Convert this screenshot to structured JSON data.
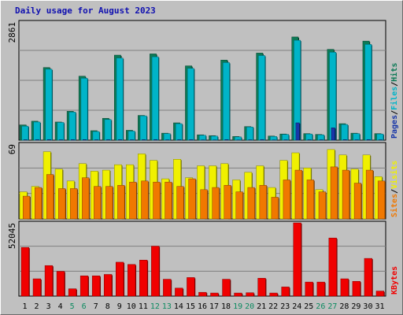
{
  "title": "Daily usage for August 2023",
  "colors": {
    "pages": "#1836a8",
    "files": "#00b4c8",
    "hits": "#0c7a56",
    "sites": "#f07800",
    "visits": "#f0f000",
    "kbytes": "#f00000",
    "weekend_day": "#0c8a60",
    "weekday": "#000000",
    "plot_bg": "#c0c0c0",
    "grid": "#808080"
  },
  "chart_data": [
    {
      "type": "bar",
      "panel": "hits-files-pages",
      "ymax_label": "2861",
      "ylim": [
        0,
        2861
      ],
      "legend": [
        "Pages",
        "/",
        "Files",
        "/",
        "Hits"
      ],
      "series": [
        {
          "name": "Hits",
          "values": [
            370,
            460,
            1760,
            440,
            700,
            1550,
            230,
            530,
            2060,
            240,
            600,
            2090,
            170,
            420,
            1800,
            130,
            110,
            1940,
            90,
            330,
            2110,
            100,
            150,
            2500,
            160,
            140,
            2200,
            400,
            170,
            2400,
            160
          ]
        },
        {
          "name": "Files",
          "values": [
            340,
            440,
            1720,
            430,
            680,
            1500,
            210,
            500,
            1990,
            220,
            590,
            2020,
            160,
            400,
            1740,
            120,
            100,
            1880,
            80,
            320,
            2050,
            90,
            140,
            2420,
            150,
            130,
            2130,
            380,
            160,
            2320,
            150
          ]
        },
        {
          "name": "Pages",
          "values": [
            10,
            12,
            14,
            10,
            12,
            14,
            9,
            11,
            13,
            9,
            12,
            15,
            8,
            11,
            13,
            7,
            6,
            14,
            5,
            9,
            15,
            6,
            8,
            420,
            10,
            9,
            300,
            12,
            8,
            14,
            9
          ]
        }
      ]
    },
    {
      "type": "bar",
      "panel": "visits-sites",
      "ymax_label": "69",
      "ylim": [
        0,
        69
      ],
      "legend": [
        "Sites",
        "/",
        "Visits"
      ],
      "series": [
        {
          "name": "Visits",
          "values": [
            25,
            30,
            62,
            46,
            35,
            51,
            44,
            45,
            50,
            50,
            60,
            54,
            37,
            55,
            38,
            49,
            49,
            51,
            36,
            43,
            49,
            29,
            54,
            61,
            47,
            27,
            64,
            59,
            46,
            59,
            39
          ]
        },
        {
          "name": "Sites",
          "values": [
            21,
            29,
            41,
            28,
            28,
            38,
            30,
            30,
            31,
            34,
            35,
            34,
            34,
            30,
            37,
            27,
            29,
            31,
            25,
            29,
            31,
            20,
            36,
            45,
            36,
            25,
            48,
            45,
            33,
            45,
            35
          ]
        }
      ]
    },
    {
      "type": "bar",
      "panel": "kbytes",
      "ymax_label": "52045",
      "ylim": [
        0,
        52045
      ],
      "legend": [
        "KBytes"
      ],
      "series": [
        {
          "name": "KBytes",
          "values": [
            34600,
            12300,
            21700,
            17600,
            5200,
            14400,
            14400,
            15400,
            24100,
            22500,
            25600,
            35500,
            12000,
            5700,
            13200,
            2700,
            2200,
            12000,
            2200,
            2400,
            12700,
            2200,
            6500,
            52045,
            10000,
            10000,
            41300,
            12300,
            10500,
            26800,
            3600
          ]
        }
      ]
    }
  ],
  "days": [
    "1",
    "2",
    "3",
    "4",
    "5",
    "6",
    "7",
    "8",
    "9",
    "10",
    "11",
    "12",
    "13",
    "14",
    "15",
    "16",
    "17",
    "18",
    "19",
    "20",
    "21",
    "22",
    "23",
    "24",
    "25",
    "26",
    "27",
    "28",
    "29",
    "30",
    "31"
  ],
  "weekend_days": [
    "5",
    "6",
    "12",
    "13",
    "19",
    "20",
    "26",
    "27"
  ]
}
